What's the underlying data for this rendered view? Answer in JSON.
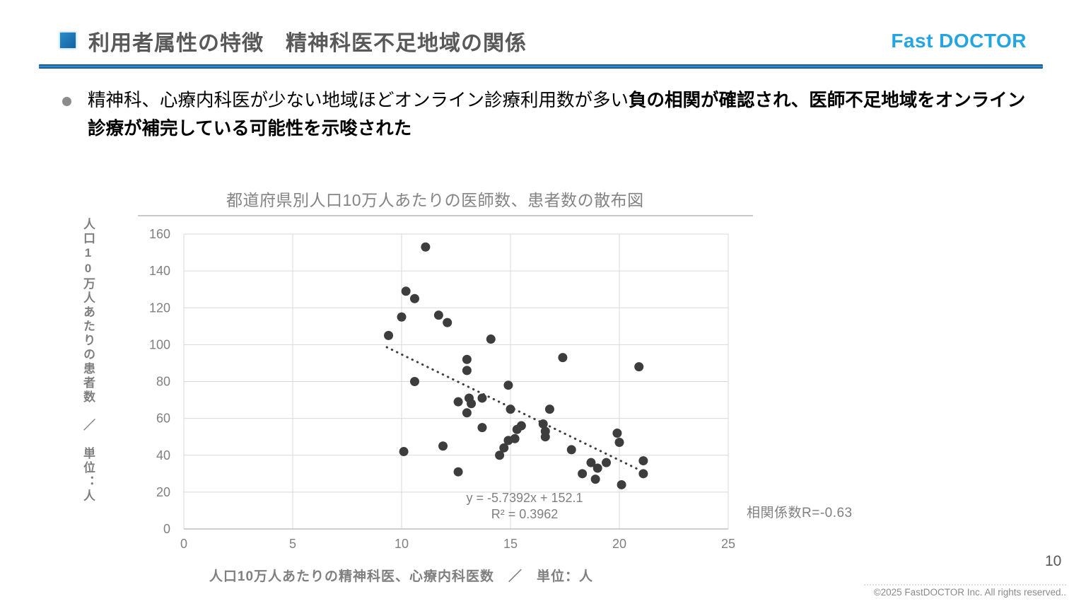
{
  "header": {
    "title": "利用者属性の特徴　精神科医不足地域の関係",
    "logo": "Fast DOCTOR",
    "accent_color": "#1b6cb5",
    "logo_color": "#25a5e0"
  },
  "bullet": {
    "text_normal": "精神科、心療内科医が少ない地域ほどオンライン診療利用数が多い",
    "text_bold": "負の相関が確認され、医師不足地域をオンライン診療が補完している可能性を示唆された"
  },
  "chart_data": {
    "type": "scatter",
    "title": "都道府県別人口10万人あたりの医師数、患者数の散布図",
    "xlabel": "人口10万人あたりの精神科医、心療内科医数　／　単位：人",
    "ylabel": "人口10万人あたりの患者数　／　単位：人",
    "xlim": [
      0,
      25
    ],
    "ylim": [
      0,
      160
    ],
    "xticks": [
      0,
      5,
      10,
      15,
      20,
      25
    ],
    "yticks": [
      0,
      20,
      40,
      60,
      80,
      100,
      120,
      140,
      160
    ],
    "grid": true,
    "point_color": "#3d3d3d",
    "grid_color": "#d9d9d9",
    "axis_color": "#bfbfbf",
    "points": [
      [
        9.4,
        105
      ],
      [
        10.0,
        115
      ],
      [
        10.1,
        42
      ],
      [
        10.2,
        129
      ],
      [
        10.6,
        125
      ],
      [
        10.6,
        80
      ],
      [
        11.1,
        153
      ],
      [
        11.7,
        116
      ],
      [
        11.9,
        45
      ],
      [
        12.1,
        112
      ],
      [
        12.6,
        69
      ],
      [
        12.6,
        31
      ],
      [
        13.0,
        92
      ],
      [
        13.0,
        86
      ],
      [
        13.0,
        63
      ],
      [
        13.1,
        71
      ],
      [
        13.2,
        68
      ],
      [
        13.7,
        71
      ],
      [
        13.7,
        55
      ],
      [
        14.1,
        103
      ],
      [
        14.5,
        40
      ],
      [
        14.7,
        44
      ],
      [
        14.9,
        78
      ],
      [
        14.9,
        48
      ],
      [
        15.0,
        65
      ],
      [
        15.2,
        49
      ],
      [
        15.3,
        54
      ],
      [
        15.5,
        56
      ],
      [
        16.5,
        57
      ],
      [
        16.6,
        53
      ],
      [
        16.6,
        50
      ],
      [
        16.8,
        65
      ],
      [
        17.4,
        93
      ],
      [
        17.8,
        43
      ],
      [
        18.3,
        30
      ],
      [
        18.7,
        36
      ],
      [
        18.9,
        27
      ],
      [
        19.0,
        33
      ],
      [
        19.4,
        36
      ],
      [
        19.9,
        52
      ],
      [
        20.0,
        47
      ],
      [
        20.1,
        24
      ],
      [
        20.9,
        88
      ],
      [
        21.1,
        37
      ],
      [
        21.1,
        30
      ]
    ],
    "trendline": {
      "slope": -5.7392,
      "intercept": 152.1,
      "x_start": 9.32,
      "x_end": 21.0,
      "label_line1": "y = -5.7392x + 152.1",
      "label_line2": "R² = 0.3962"
    },
    "annotation": "相関係数R=-0.63",
    "legend": null
  },
  "footer": {
    "page_number": "10",
    "copyright": "©2025 FastDOCTOR Inc. All rights reserved.."
  }
}
